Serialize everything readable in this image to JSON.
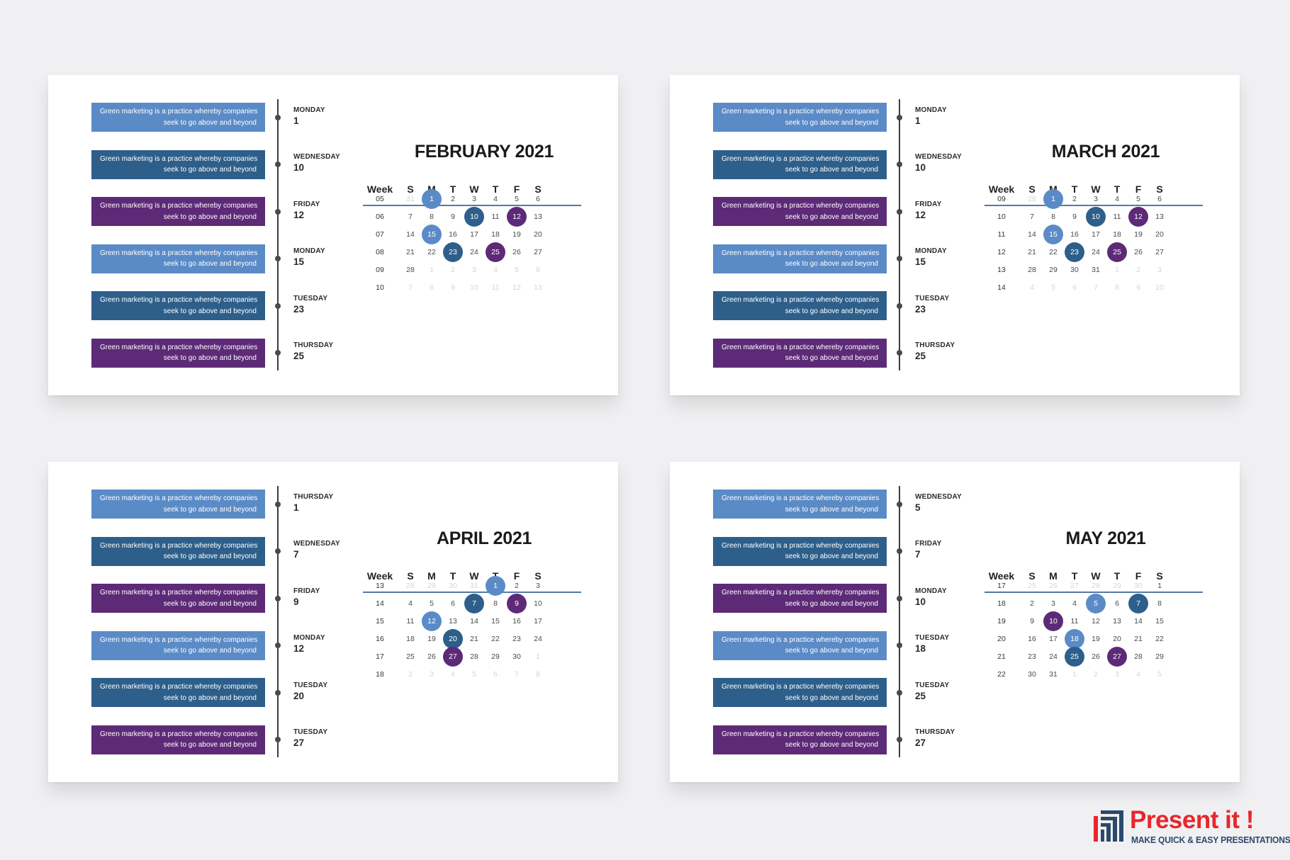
{
  "colors": {
    "light_blue": "#5b8bc7",
    "dark_blue": "#2d5f8a",
    "purple": "#5d2a77",
    "timeline": "#3d3d3d",
    "logo_red": "#e8262b",
    "logo_navy": "#2a4a6b"
  },
  "week_header": [
    "Week",
    "S",
    "M",
    "T",
    "W",
    "T",
    "F",
    "S"
  ],
  "calendars": [
    {
      "title": "FEBRUARY 2021",
      "boxes": [
        {
          "l1": "Green marketing is a practice whereby companies",
          "l2": "seek to go above and beyond",
          "color": "light"
        },
        {
          "l1": "Green marketing is a practice whereby companies",
          "l2": "seek to go above and beyond",
          "color": "dark"
        },
        {
          "l1": "Green marketing is a practice whereby companies",
          "l2": "seek to go above and beyond",
          "color": "purple"
        },
        {
          "l1": "Green marketing is a practice whereby companies",
          "l2": "seek to go above and beyond",
          "color": "light"
        },
        {
          "l1": "Green marketing is a practice whereby companies",
          "l2": "seek to go above and beyond",
          "color": "dark"
        },
        {
          "l1": "Green marketing is a practice whereby companies",
          "l2": "seek to go above and beyond",
          "color": "purple"
        }
      ],
      "events": [
        {
          "day": "MONDAY",
          "date": "1"
        },
        {
          "day": "WEDNESDAY",
          "date": "10"
        },
        {
          "day": "FRIDAY",
          "date": "12"
        },
        {
          "day": "MONDAY",
          "date": "15"
        },
        {
          "day": "TUESDAY",
          "date": "23"
        },
        {
          "day": "THURSDAY",
          "date": "25"
        }
      ],
      "weeks": [
        "05",
        "06",
        "07",
        "08",
        "09",
        "10"
      ],
      "rows": [
        [
          "31",
          "1",
          "2",
          "3",
          "4",
          "5",
          "6"
        ],
        [
          "7",
          "8",
          "9",
          "10",
          "11",
          "12",
          "13"
        ],
        [
          "14",
          "15",
          "16",
          "17",
          "18",
          "19",
          "20"
        ],
        [
          "21",
          "22",
          "23",
          "24",
          "25",
          "26",
          "27"
        ],
        [
          "28",
          "1",
          "2",
          "3",
          "4",
          "5",
          "6"
        ],
        [
          "7",
          "8",
          "9",
          "10",
          "11",
          "12",
          "13"
        ]
      ],
      "first_in_month": [
        0,
        1
      ],
      "last_in_month": [
        4,
        0
      ],
      "highlights": [
        {
          "r": 0,
          "c": 1,
          "color": "light"
        },
        {
          "r": 1,
          "c": 3,
          "color": "dark"
        },
        {
          "r": 1,
          "c": 5,
          "color": "purple"
        },
        {
          "r": 2,
          "c": 1,
          "color": "light"
        },
        {
          "r": 3,
          "c": 2,
          "color": "dark"
        },
        {
          "r": 3,
          "c": 4,
          "color": "purple"
        }
      ]
    },
    {
      "title": "MARCH 2021",
      "boxes": [
        {
          "l1": "Green marketing is a practice whereby companies",
          "l2": "seek to go above and beyond",
          "color": "light"
        },
        {
          "l1": "Green marketing is a practice whereby companies",
          "l2": "seek to go above and beyond",
          "color": "dark"
        },
        {
          "l1": "Green marketing is a practice whereby companies",
          "l2": "seek to go above and beyond",
          "color": "purple"
        },
        {
          "l1": "Green marketing is a practice whereby companies",
          "l2": "seek to go above and beyond",
          "color": "light"
        },
        {
          "l1": "Green marketing is a practice whereby companies",
          "l2": "seek to go above and beyond",
          "color": "dark"
        },
        {
          "l1": "Green marketing is a practice whereby companies",
          "l2": "seek to go above and beyond",
          "color": "purple"
        }
      ],
      "events": [
        {
          "day": "MONDAY",
          "date": "1"
        },
        {
          "day": "WEDNESDAY",
          "date": "10"
        },
        {
          "day": "FRIDAY",
          "date": "12"
        },
        {
          "day": "MONDAY",
          "date": "15"
        },
        {
          "day": "TUESDAY",
          "date": "23"
        },
        {
          "day": "THURSDAY",
          "date": "25"
        }
      ],
      "weeks": [
        "09",
        "10",
        "11",
        "12",
        "13",
        "14"
      ],
      "rows": [
        [
          "28",
          "1",
          "2",
          "3",
          "4",
          "5",
          "6"
        ],
        [
          "7",
          "8",
          "9",
          "10",
          "11",
          "12",
          "13"
        ],
        [
          "14",
          "15",
          "16",
          "17",
          "18",
          "19",
          "20"
        ],
        [
          "21",
          "22",
          "23",
          "24",
          "25",
          "26",
          "27"
        ],
        [
          "28",
          "29",
          "30",
          "31",
          "1",
          "2",
          "3"
        ],
        [
          "4",
          "5",
          "6",
          "7",
          "8",
          "9",
          "10"
        ]
      ],
      "first_in_month": [
        0,
        1
      ],
      "last_in_month": [
        4,
        3
      ],
      "highlights": [
        {
          "r": 0,
          "c": 1,
          "color": "light"
        },
        {
          "r": 1,
          "c": 3,
          "color": "dark"
        },
        {
          "r": 1,
          "c": 5,
          "color": "purple"
        },
        {
          "r": 2,
          "c": 1,
          "color": "light"
        },
        {
          "r": 3,
          "c": 2,
          "color": "dark"
        },
        {
          "r": 3,
          "c": 4,
          "color": "purple"
        }
      ]
    },
    {
      "title": "APRIL 2021",
      "boxes": [
        {
          "l1": "Green marketing is a practice whereby companies",
          "l2": "seek to go above and beyond",
          "color": "light"
        },
        {
          "l1": "Green marketing is a practice whereby companies",
          "l2": "seek to go above and beyond",
          "color": "dark"
        },
        {
          "l1": "Green marketing is a practice whereby companies",
          "l2": "seek to go above and beyond",
          "color": "purple"
        },
        {
          "l1": "Green marketing is a practice whereby companies",
          "l2": "seek to go above and beyond",
          "color": "light"
        },
        {
          "l1": "Green marketing is a practice whereby companies",
          "l2": "seek to go above and beyond",
          "color": "dark"
        },
        {
          "l1": "Green marketing is a practice whereby companies",
          "l2": "seek to go above and beyond",
          "color": "purple"
        }
      ],
      "events": [
        {
          "day": "THURSDAY",
          "date": "1"
        },
        {
          "day": "WEDNESDAY",
          "date": "7"
        },
        {
          "day": "FRIDAY",
          "date": "9"
        },
        {
          "day": "MONDAY",
          "date": "12"
        },
        {
          "day": "TUESDAY",
          "date": "20"
        },
        {
          "day": "TUESDAY",
          "date": "27"
        }
      ],
      "weeks": [
        "13",
        "14",
        "15",
        "16",
        "17",
        "18"
      ],
      "rows": [
        [
          "28",
          "29",
          "30",
          "31",
          "1",
          "2",
          "3"
        ],
        [
          "4",
          "5",
          "6",
          "7",
          "8",
          "9",
          "10"
        ],
        [
          "11",
          "12",
          "13",
          "14",
          "15",
          "16",
          "17"
        ],
        [
          "18",
          "19",
          "20",
          "21",
          "22",
          "23",
          "24"
        ],
        [
          "25",
          "26",
          "27",
          "28",
          "29",
          "30",
          "1"
        ],
        [
          "2",
          "3",
          "4",
          "5",
          "6",
          "7",
          "8"
        ]
      ],
      "first_in_month": [
        0,
        4
      ],
      "last_in_month": [
        4,
        5
      ],
      "highlights": [
        {
          "r": 0,
          "c": 4,
          "color": "light"
        },
        {
          "r": 1,
          "c": 3,
          "color": "dark"
        },
        {
          "r": 1,
          "c": 5,
          "color": "purple"
        },
        {
          "r": 2,
          "c": 1,
          "color": "light"
        },
        {
          "r": 3,
          "c": 2,
          "color": "dark"
        },
        {
          "r": 4,
          "c": 2,
          "color": "purple"
        }
      ]
    },
    {
      "title": "MAY 2021",
      "boxes": [
        {
          "l1": "Green marketing is a practice whereby companies",
          "l2": "seek to go above and beyond",
          "color": "light"
        },
        {
          "l1": "Green marketing is a practice whereby companies",
          "l2": "seek to go above and beyond",
          "color": "dark"
        },
        {
          "l1": "Green marketing is a practice whereby companies",
          "l2": "seek to go above and beyond",
          "color": "purple"
        },
        {
          "l1": "Green marketing is a practice whereby companies",
          "l2": "seek to go above and beyond",
          "color": "light"
        },
        {
          "l1": "Green marketing is a practice whereby companies",
          "l2": "seek to go above and beyond",
          "color": "dark"
        },
        {
          "l1": "Green marketing is a practice whereby companies",
          "l2": "seek to go above and beyond",
          "color": "purple"
        }
      ],
      "events": [
        {
          "day": "WEDNESDAY",
          "date": "5"
        },
        {
          "day": "FRIDAY",
          "date": "7"
        },
        {
          "day": "MONDAY",
          "date": "10"
        },
        {
          "day": "TUESDAY",
          "date": "18"
        },
        {
          "day": "TUESDAY",
          "date": "25"
        },
        {
          "day": "THURSDAY",
          "date": "27"
        }
      ],
      "weeks": [
        "17",
        "18",
        "19",
        "20",
        "21",
        "22"
      ],
      "rows": [
        [
          "25",
          "26",
          "27",
          "28",
          "29",
          "30",
          "1"
        ],
        [
          "2",
          "3",
          "4",
          "5",
          "6",
          "7",
          "8"
        ],
        [
          "9",
          "10",
          "11",
          "12",
          "13",
          "14",
          "15"
        ],
        [
          "16",
          "17",
          "18",
          "19",
          "20",
          "21",
          "22"
        ],
        [
          "23",
          "24",
          "25",
          "26",
          "27",
          "28",
          "29"
        ],
        [
          "30",
          "31",
          "1",
          "2",
          "3",
          "4",
          "5"
        ]
      ],
      "first_in_month": [
        0,
        6
      ],
      "last_in_month": [
        5,
        1
      ],
      "highlights": [
        {
          "r": 1,
          "c": 3,
          "color": "light"
        },
        {
          "r": 1,
          "c": 5,
          "color": "dark"
        },
        {
          "r": 2,
          "c": 1,
          "color": "purple"
        },
        {
          "r": 3,
          "c": 2,
          "color": "light"
        },
        {
          "r": 4,
          "c": 2,
          "color": "dark"
        },
        {
          "r": 4,
          "c": 4,
          "color": "purple"
        }
      ]
    }
  ],
  "logo": {
    "name": "Present it !",
    "tagline": "MAKE QUICK & EASY PRESENTATIONS",
    "icon": "stacked-bars-icon"
  }
}
